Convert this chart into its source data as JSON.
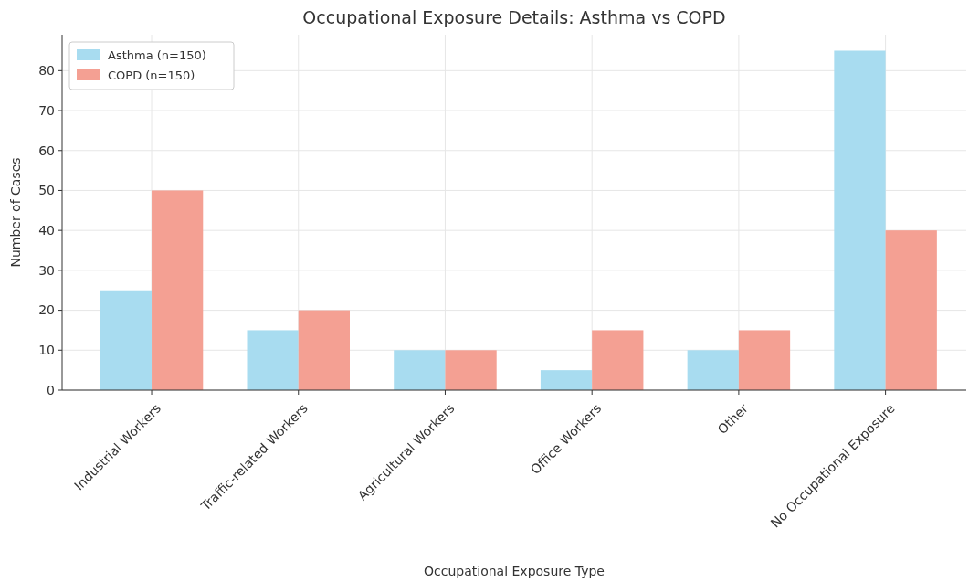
{
  "chart_data": {
    "type": "bar",
    "title": "Occupational Exposure Details: Asthma vs COPD",
    "xlabel": "Occupational Exposure Type",
    "ylabel": "Number of Cases",
    "categories": [
      "Industrial Workers",
      "Traffic-related Workers",
      "Agricultural Workers",
      "Office Workers",
      "Other",
      "No Occupational Exposure"
    ],
    "series": [
      {
        "name": "Asthma (n=150)",
        "color": "#a8dcf0",
        "values": [
          25,
          15,
          10,
          5,
          10,
          85
        ]
      },
      {
        "name": "COPD (n=150)",
        "color": "#f4a093",
        "values": [
          50,
          20,
          10,
          15,
          15,
          40
        ]
      }
    ],
    "ylim": [
      0,
      89
    ],
    "yticks": [
      0,
      10,
      20,
      30,
      40,
      50,
      60,
      70,
      80
    ],
    "grid": true,
    "legend": "top left"
  }
}
